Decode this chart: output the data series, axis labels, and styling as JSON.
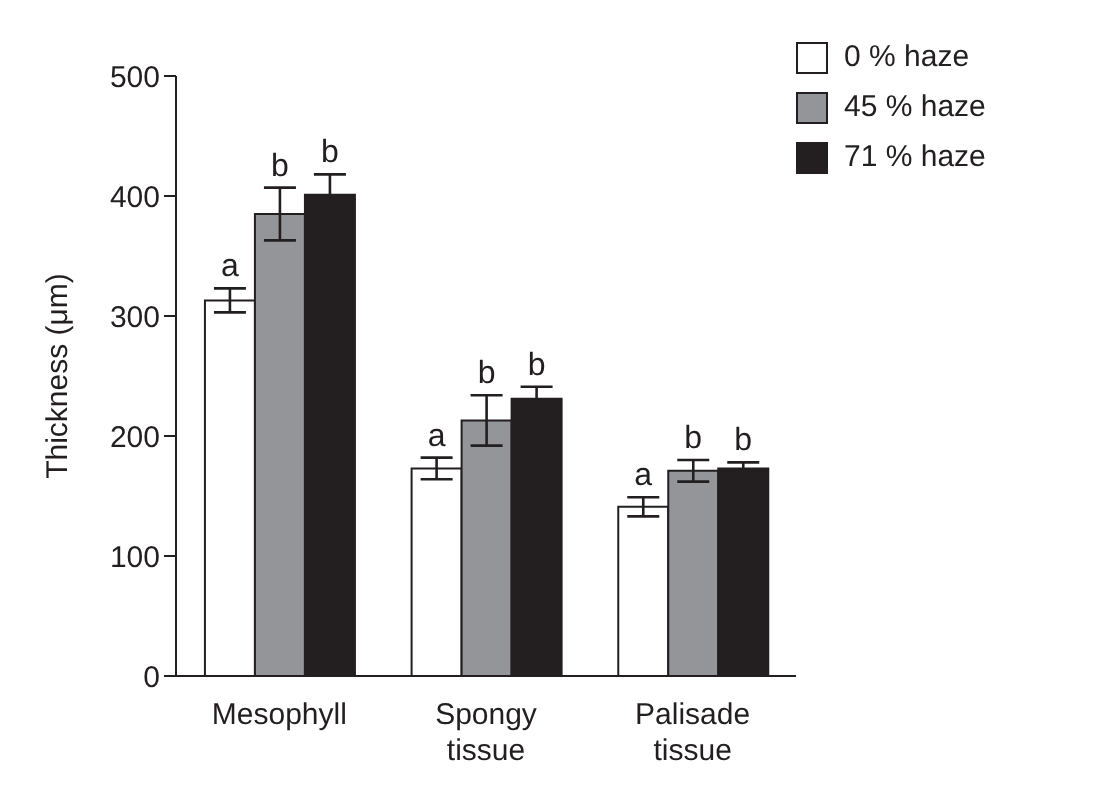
{
  "chart_data": {
    "type": "bar",
    "ylabel": "Thickness (μm)",
    "categories": [
      "Mesophyll",
      "Spongy tissue",
      "Palisade tissue"
    ],
    "series": [
      {
        "name": "0 % haze",
        "color": "#ffffff",
        "values": [
          313,
          173,
          141
        ],
        "errors": [
          10,
          9,
          8
        ],
        "value_labels": [
          "a",
          "a",
          "a"
        ]
      },
      {
        "name": "45 % haze",
        "color": "#939598",
        "values": [
          385,
          213,
          171
        ],
        "errors": [
          22,
          21,
          9
        ],
        "value_labels": [
          "b",
          "b",
          "b"
        ]
      },
      {
        "name": "71 % haze",
        "color": "#231f20",
        "values": [
          401,
          231,
          173
        ],
        "errors": [
          17,
          10,
          5
        ],
        "value_labels": [
          "b",
          "b",
          "b"
        ]
      }
    ],
    "ylim": [
      0,
      500
    ],
    "yticks": [
      0,
      100,
      200,
      300,
      400,
      500
    ],
    "grid": false,
    "legend": "top right"
  }
}
